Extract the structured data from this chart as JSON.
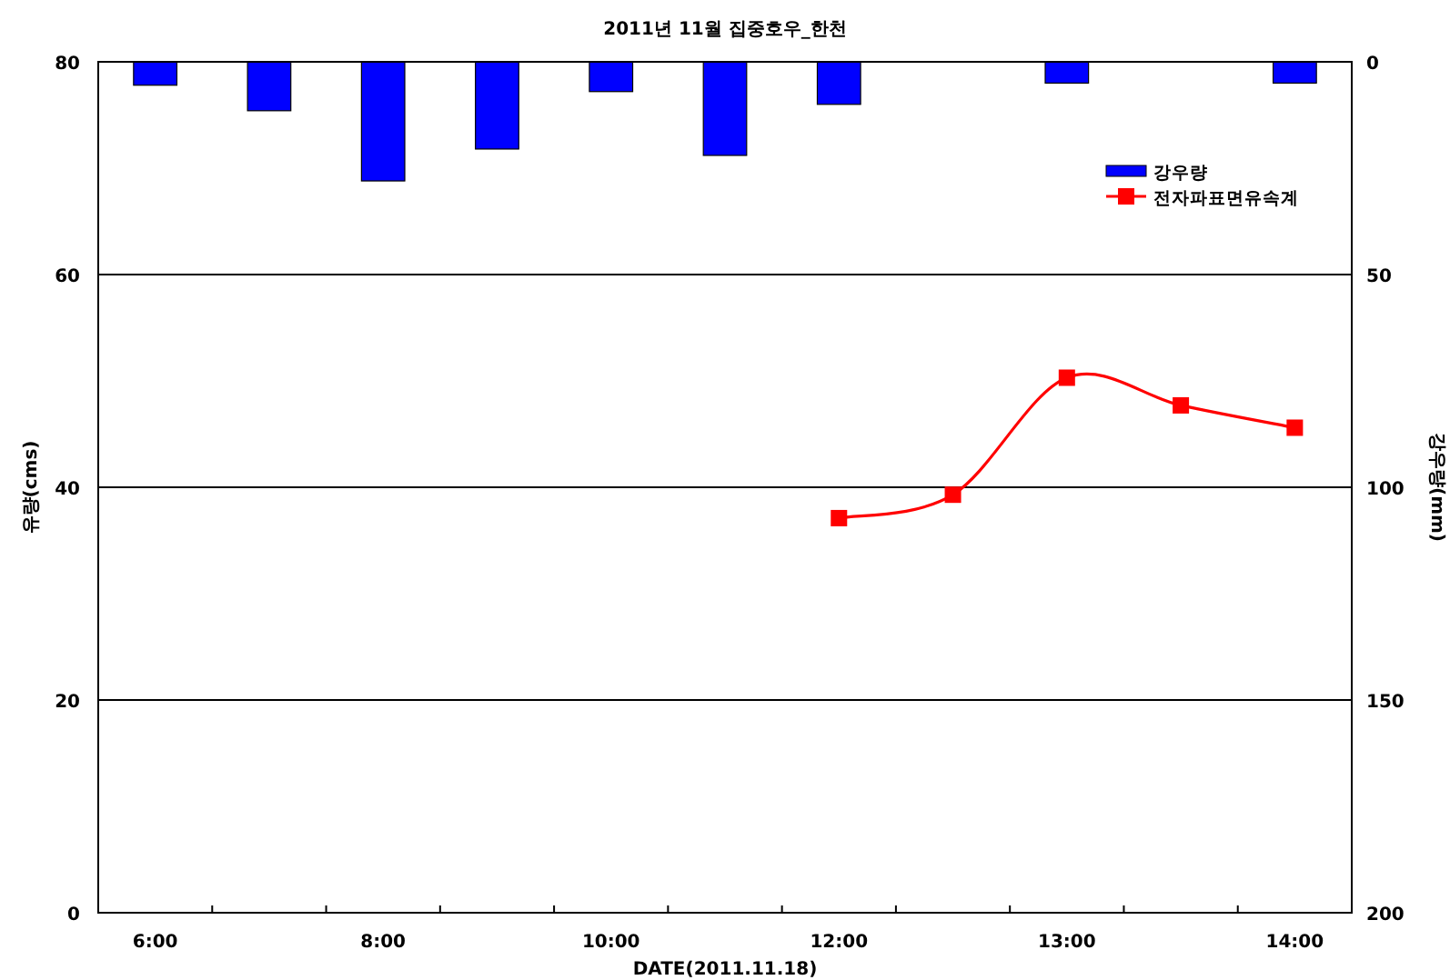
{
  "chart_data": {
    "type": "bar",
    "title": "2011년 11월 집중호우_한천",
    "xlabel": "DATE(2011.11.18)",
    "ylabel": "유량(cms)",
    "y2label": "강우량(mm)",
    "categories": [
      "6:00",
      null,
      "8:00",
      null,
      "10:00",
      null,
      "12:00",
      null,
      "13:00",
      null,
      "14:00"
    ],
    "series": [
      {
        "name": "강우량",
        "axis": "y2",
        "color": "#0000ff",
        "values": [
          5.5,
          11.5,
          28,
          20.5,
          7,
          22,
          10,
          null,
          5,
          null,
          5
        ]
      },
      {
        "name": "전자파표면유속계",
        "type": "line",
        "color": "#ff0000",
        "marker": "square",
        "values": [
          null,
          null,
          null,
          null,
          null,
          null,
          37.1,
          39.3,
          50.3,
          47.7,
          45.6
        ]
      }
    ],
    "ylim": [
      0,
      80
    ],
    "yticks": [
      0,
      20,
      40,
      60,
      80
    ],
    "y2lim": [
      200,
      0
    ],
    "y2ticks": [
      0,
      50,
      100,
      150,
      200
    ],
    "grid": "y",
    "legend": "top right"
  }
}
